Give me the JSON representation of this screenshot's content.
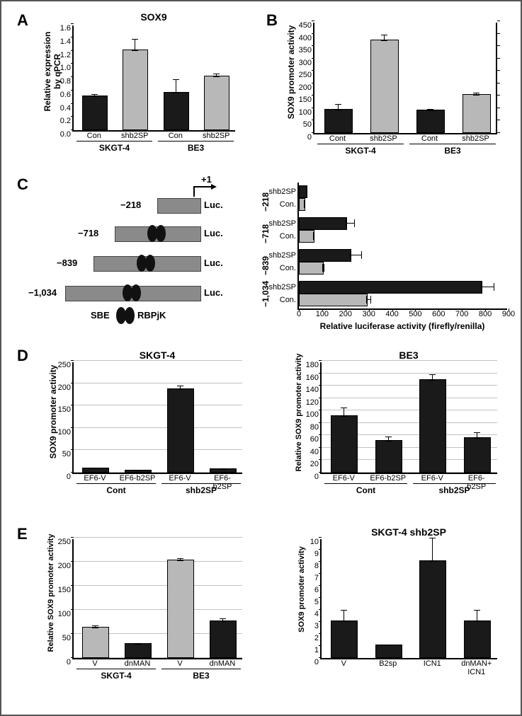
{
  "labels": {
    "A": "A",
    "B": "B",
    "C": "C",
    "D": "D",
    "E": "E",
    "sox9": "SOX9",
    "qpcr_yl1": "Relative expression",
    "qpcr_yl2": "by qPCR",
    "sox9_promoter": "SOX9 promoter activity",
    "rel_sox9_prom": "Relative SOX9 promoter activity",
    "con": "Con",
    "cont": "Cont",
    "shb2sp": "shb2SP",
    "skgt4": "SKGT-4",
    "be3": "BE3",
    "ef6v": "EF6-V",
    "ef6b": "EF6-b2SP",
    "v": "V",
    "b2sp": "B2sp",
    "icn1": "ICN1",
    "dnman_icn1": "dnMAN+",
    "dnman_icn1_2": "ICN1",
    "dnman": "dnMAN",
    "skgt4_sh": "SKGT-4 shb2SP",
    "luc": "Luc.",
    "sbe": "SBE",
    "rbpjk": "RBPjK",
    "plus1": "+1",
    "p218": "−218",
    "p718": "−718",
    "p839": "−839",
    "p1034": "−1,034",
    "rel_luc": "Relative luciferase activity (firefly/renilla)",
    "conDot": "Con."
  },
  "colors": {
    "black": "#000000",
    "grey": "#b8b8b8",
    "darkbar": "#1a1a1a",
    "promoter": "#8a8a8a",
    "grid": "#999999"
  },
  "chartA": {
    "ymax": 1.6,
    "ytick": 0.2,
    "bars": [
      {
        "x": 0,
        "v": 0.5,
        "e": 0.04,
        "c": "black",
        "lab": "con"
      },
      {
        "x": 1,
        "v": 1.2,
        "e": 0.18,
        "c": "grey",
        "lab": "shb2sp"
      },
      {
        "x": 2,
        "v": 0.55,
        "e": 0.22,
        "c": "black",
        "lab": "con"
      },
      {
        "x": 3,
        "v": 0.8,
        "e": 0.05,
        "c": "grey",
        "lab": "shb2sp"
      }
    ],
    "groups": [
      {
        "lab": "skgt4",
        "span": [
          0,
          1
        ]
      },
      {
        "lab": "be3",
        "span": [
          2,
          3
        ]
      }
    ]
  },
  "chartB": {
    "ymax": 450,
    "ytick": 50,
    "bars": [
      {
        "x": 0,
        "v": 90,
        "e": 28,
        "c": "black",
        "lab": "cont"
      },
      {
        "x": 1,
        "v": 370,
        "e": 25,
        "c": "grey",
        "lab": "shb2sp"
      },
      {
        "x": 2,
        "v": 88,
        "e": 8,
        "c": "black",
        "lab": "cont"
      },
      {
        "x": 3,
        "v": 150,
        "e": 12,
        "c": "grey",
        "lab": "shb2sp"
      }
    ],
    "groups": [
      {
        "lab": "skgt4",
        "span": [
          0,
          1
        ]
      },
      {
        "lab": "be3",
        "span": [
          2,
          3
        ]
      }
    ]
  },
  "chartC_left": {
    "rows": [
      {
        "len": 60,
        "label": "p218",
        "ovals": false
      },
      {
        "len": 120,
        "label": "p718",
        "ovals": true
      },
      {
        "len": 150,
        "label": "p839",
        "ovals": true
      },
      {
        "len": 190,
        "label": "p1034",
        "ovals": true
      }
    ]
  },
  "chartC_right": {
    "xmax": 900,
    "xtick": 100,
    "rows": [
      {
        "grp": "p218",
        "bars": [
          {
            "lab": "shb2sp",
            "v": 30,
            "e": 5,
            "c": "black"
          },
          {
            "lab": "conDot",
            "v": 20,
            "e": 3,
            "c": "grey"
          }
        ]
      },
      {
        "grp": "p718",
        "bars": [
          {
            "lab": "shb2sp",
            "v": 200,
            "e": 40,
            "c": "black"
          },
          {
            "lab": "conDot",
            "v": 60,
            "e": 5,
            "c": "grey"
          }
        ]
      },
      {
        "grp": "p839",
        "bars": [
          {
            "lab": "shb2sp",
            "v": 220,
            "e": 50,
            "c": "black"
          },
          {
            "lab": "conDot",
            "v": 100,
            "e": 8,
            "c": "grey"
          }
        ]
      },
      {
        "grp": "p1034",
        "bars": [
          {
            "lab": "shb2sp",
            "v": 780,
            "e": 60,
            "c": "black"
          },
          {
            "lab": "conDot",
            "v": 290,
            "e": 20,
            "c": "grey"
          }
        ]
      }
    ]
  },
  "chartD1": {
    "ymax": 250,
    "ytick": 50,
    "title": "skgt4",
    "bars": [
      {
        "x": 0,
        "v": 8,
        "e": 2,
        "c": "black",
        "lab": "ef6v"
      },
      {
        "x": 1,
        "v": 3,
        "e": 1,
        "c": "black",
        "lab": "ef6b"
      },
      {
        "x": 2,
        "v": 185,
        "e": 10,
        "c": "black",
        "lab": "ef6v"
      },
      {
        "x": 3,
        "v": 6,
        "e": 2,
        "c": "black",
        "lab": "ef6b"
      }
    ],
    "groups": [
      {
        "lab": "cont",
        "span": [
          0,
          1
        ]
      },
      {
        "lab": "shb2sp",
        "span": [
          2,
          3
        ]
      }
    ]
  },
  "chartD2": {
    "ymax": 180,
    "ytick": 20,
    "title": "be3",
    "bars": [
      {
        "x": 0,
        "v": 90,
        "e": 15,
        "c": "black",
        "lab": "ef6v"
      },
      {
        "x": 1,
        "v": 50,
        "e": 8,
        "c": "black",
        "lab": "ef6b"
      },
      {
        "x": 2,
        "v": 148,
        "e": 10,
        "c": "black",
        "lab": "ef6v"
      },
      {
        "x": 3,
        "v": 55,
        "e": 10,
        "c": "black",
        "lab": "ef6b"
      }
    ],
    "groups": [
      {
        "lab": "cont",
        "span": [
          0,
          1
        ]
      },
      {
        "lab": "shb2sp",
        "span": [
          2,
          3
        ]
      }
    ]
  },
  "chartE1": {
    "ymax": 250,
    "ytick": 50,
    "bars": [
      {
        "x": 0,
        "v": 62,
        "e": 5,
        "c": "grey",
        "lab": "v"
      },
      {
        "x": 1,
        "v": 28,
        "e": 2,
        "c": "black",
        "lab": "dnman"
      },
      {
        "x": 2,
        "v": 202,
        "e": 5,
        "c": "grey",
        "lab": "v"
      },
      {
        "x": 3,
        "v": 75,
        "e": 8,
        "c": "black",
        "lab": "dnman"
      }
    ],
    "groups": [
      {
        "lab": "skgt4",
        "span": [
          0,
          1
        ]
      },
      {
        "lab": "be3",
        "span": [
          2,
          3
        ]
      }
    ]
  },
  "chartE2": {
    "ymax": 10,
    "ytick": 1,
    "title": "skgt4_sh",
    "bars": [
      {
        "x": 0,
        "v": 3.0,
        "e": 1.0,
        "c": "black",
        "lab": "v"
      },
      {
        "x": 1,
        "v": 1.0,
        "e": 0.1,
        "c": "black",
        "lab": "b2sp"
      },
      {
        "x": 2,
        "v": 8.0,
        "e": 2.0,
        "c": "black",
        "lab": "icn1"
      },
      {
        "x": 3,
        "v": 3.0,
        "e": 1.0,
        "c": "black",
        "lab": "dnman_icn1"
      }
    ]
  }
}
